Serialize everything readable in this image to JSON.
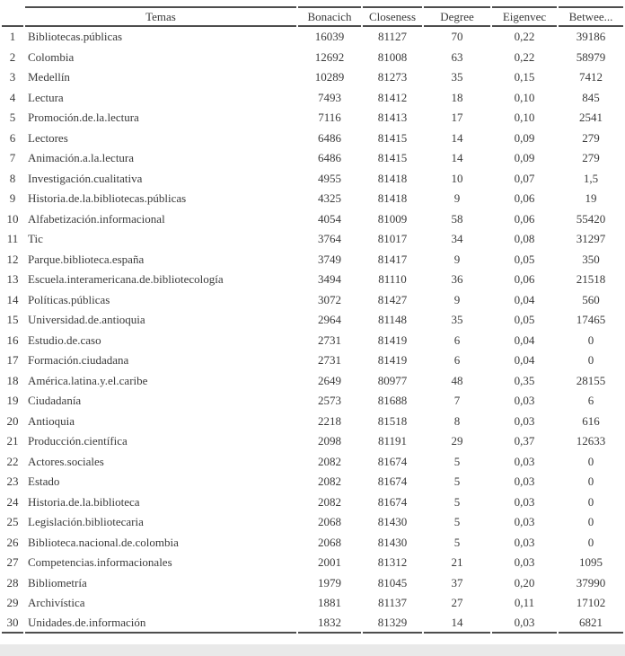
{
  "colors": {
    "text": "#3a3a3a",
    "rule": "#4d4d4d",
    "page_bg": "#ffffff",
    "bottom_strip": "#e9e9e9"
  },
  "table": {
    "headers": {
      "rank": "",
      "tema": "Temas",
      "bonacich": "Bonacich",
      "closeness": "Closeness",
      "degree": "Degree",
      "eigenvec": "Eigenvec",
      "betweenness": "Betwee..."
    },
    "rows": [
      {
        "rank": "1",
        "tema": "Bibliotecas.públicas",
        "bonacich": "16039",
        "closeness": "81127",
        "degree": "70",
        "eigenvec": "0,22",
        "betweenness": "39186"
      },
      {
        "rank": "2",
        "tema": "Colombia",
        "bonacich": "12692",
        "closeness": "81008",
        "degree": "63",
        "eigenvec": "0,22",
        "betweenness": "58979"
      },
      {
        "rank": "3",
        "tema": "Medellín",
        "bonacich": "10289",
        "closeness": "81273",
        "degree": "35",
        "eigenvec": "0,15",
        "betweenness": "7412"
      },
      {
        "rank": "4",
        "tema": "Lectura",
        "bonacich": "7493",
        "closeness": "81412",
        "degree": "18",
        "eigenvec": "0,10",
        "betweenness": "845"
      },
      {
        "rank": "5",
        "tema": "Promoción.de.la.lectura",
        "bonacich": "7116",
        "closeness": "81413",
        "degree": "17",
        "eigenvec": "0,10",
        "betweenness": "2541"
      },
      {
        "rank": "6",
        "tema": "Lectores",
        "bonacich": "6486",
        "closeness": "81415",
        "degree": "14",
        "eigenvec": "0,09",
        "betweenness": "279"
      },
      {
        "rank": "7",
        "tema": "Animación.a.la.lectura",
        "bonacich": "6486",
        "closeness": "81415",
        "degree": "14",
        "eigenvec": "0,09",
        "betweenness": "279"
      },
      {
        "rank": "8",
        "tema": "Investigación.cualitativa",
        "bonacich": "4955",
        "closeness": "81418",
        "degree": "10",
        "eigenvec": "0,07",
        "betweenness": "1,5"
      },
      {
        "rank": "9",
        "tema": "Historia.de.la.bibliotecas.públicas",
        "bonacich": "4325",
        "closeness": "81418",
        "degree": "9",
        "eigenvec": "0,06",
        "betweenness": "19"
      },
      {
        "rank": "10",
        "tema": "Alfabetización.informacional",
        "bonacich": "4054",
        "closeness": "81009",
        "degree": "58",
        "eigenvec": "0,06",
        "betweenness": "55420"
      },
      {
        "rank": "11",
        "tema": "Tic",
        "bonacich": "3764",
        "closeness": "81017",
        "degree": "34",
        "eigenvec": "0,08",
        "betweenness": "31297"
      },
      {
        "rank": "12",
        "tema": "Parque.biblioteca.españa",
        "bonacich": "3749",
        "closeness": "81417",
        "degree": "9",
        "eigenvec": "0,05",
        "betweenness": "350"
      },
      {
        "rank": "13",
        "tema": "Escuela.interamericana.de.bibliotecología",
        "bonacich": "3494",
        "closeness": "81110",
        "degree": "36",
        "eigenvec": "0,06",
        "betweenness": "21518"
      },
      {
        "rank": "14",
        "tema": "Políticas.públicas",
        "bonacich": "3072",
        "closeness": "81427",
        "degree": "9",
        "eigenvec": "0,04",
        "betweenness": "560"
      },
      {
        "rank": "15",
        "tema": "Universidad.de.antioquia",
        "bonacich": "2964",
        "closeness": "81148",
        "degree": "35",
        "eigenvec": "0,05",
        "betweenness": "17465"
      },
      {
        "rank": "16",
        "tema": "Estudio.de.caso",
        "bonacich": "2731",
        "closeness": "81419",
        "degree": "6",
        "eigenvec": "0,04",
        "betweenness": "0"
      },
      {
        "rank": "17",
        "tema": "Formación.ciudadana",
        "bonacich": "2731",
        "closeness": "81419",
        "degree": "6",
        "eigenvec": "0,04",
        "betweenness": "0"
      },
      {
        "rank": "18",
        "tema": "América.latina.y.el.caribe",
        "bonacich": "2649",
        "closeness": "80977",
        "degree": "48",
        "eigenvec": "0,35",
        "betweenness": "28155"
      },
      {
        "rank": "19",
        "tema": "Ciudadanía",
        "bonacich": "2573",
        "closeness": "81688",
        "degree": "7",
        "eigenvec": "0,03",
        "betweenness": "6"
      },
      {
        "rank": "20",
        "tema": "Antioquia",
        "bonacich": "2218",
        "closeness": "81518",
        "degree": "8",
        "eigenvec": "0,03",
        "betweenness": "616"
      },
      {
        "rank": "21",
        "tema": "Producción.científica",
        "bonacich": "2098",
        "closeness": "81191",
        "degree": "29",
        "eigenvec": "0,37",
        "betweenness": "12633"
      },
      {
        "rank": "22",
        "tema": "Actores.sociales",
        "bonacich": "2082",
        "closeness": "81674",
        "degree": "5",
        "eigenvec": "0,03",
        "betweenness": "0"
      },
      {
        "rank": "23",
        "tema": "Estado",
        "bonacich": "2082",
        "closeness": "81674",
        "degree": "5",
        "eigenvec": "0,03",
        "betweenness": "0"
      },
      {
        "rank": "24",
        "tema": "Historia.de.la.biblioteca",
        "bonacich": "2082",
        "closeness": "81674",
        "degree": "5",
        "eigenvec": "0,03",
        "betweenness": "0"
      },
      {
        "rank": "25",
        "tema": "Legislación.bibliotecaria",
        "bonacich": "2068",
        "closeness": "81430",
        "degree": "5",
        "eigenvec": "0,03",
        "betweenness": "0"
      },
      {
        "rank": "26",
        "tema": "Biblioteca.nacional.de.colombia",
        "bonacich": "2068",
        "closeness": "81430",
        "degree": "5",
        "eigenvec": "0,03",
        "betweenness": "0"
      },
      {
        "rank": "27",
        "tema": "Competencias.informacionales",
        "bonacich": "2001",
        "closeness": "81312",
        "degree": "21",
        "eigenvec": "0,03",
        "betweenness": "1095"
      },
      {
        "rank": "28",
        "tema": "Bibliometría",
        "bonacich": "1979",
        "closeness": "81045",
        "degree": "37",
        "eigenvec": "0,20",
        "betweenness": "37990"
      },
      {
        "rank": "29",
        "tema": "Archivística",
        "bonacich": "1881",
        "closeness": "81137",
        "degree": "27",
        "eigenvec": "0,11",
        "betweenness": "17102"
      },
      {
        "rank": "30",
        "tema": "Unidades.de.información",
        "bonacich": "1832",
        "closeness": "81329",
        "degree": "14",
        "eigenvec": "0,03",
        "betweenness": "6821"
      }
    ]
  }
}
